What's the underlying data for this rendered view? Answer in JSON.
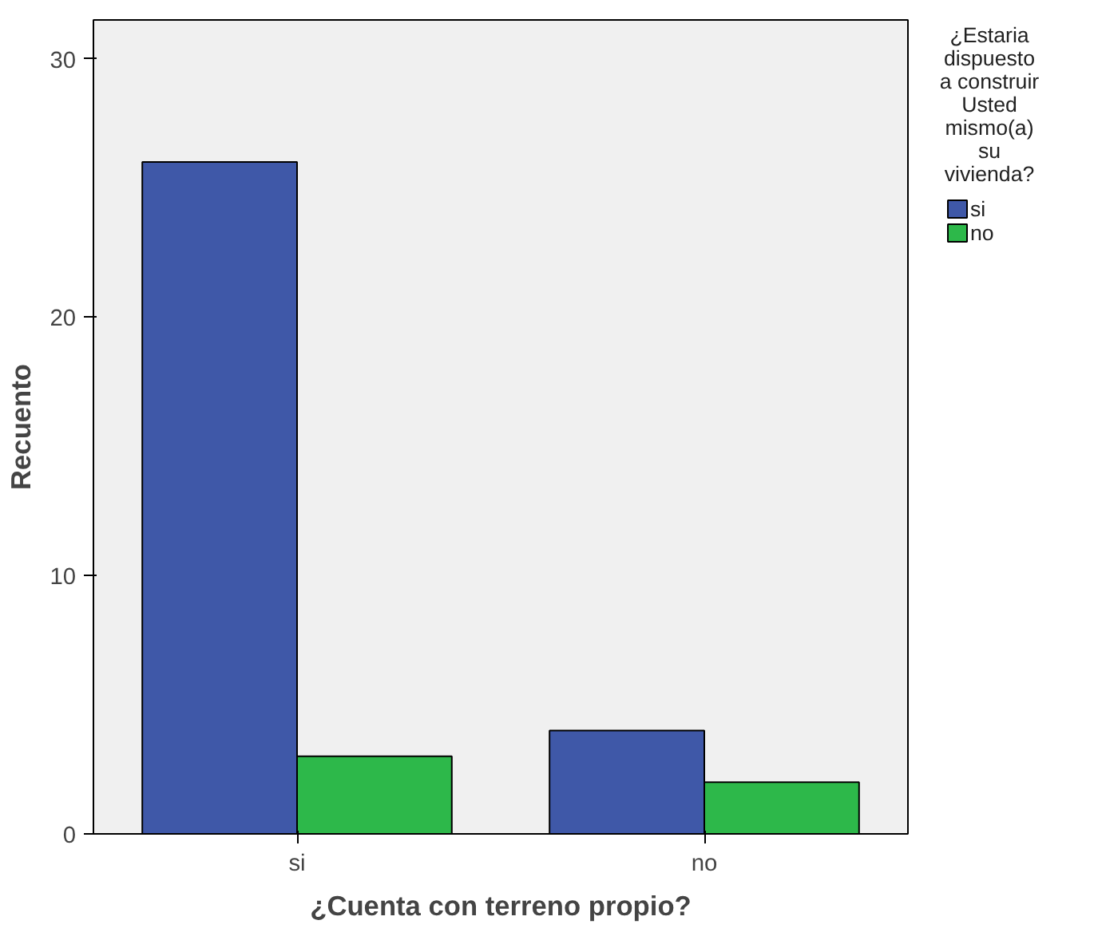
{
  "chart_data": {
    "type": "bar",
    "xlabel": "¿Cuenta con terreno propio?",
    "ylabel": "Recuento",
    "legend_title": "¿Estaria\ndispuesto\na construir\nUsted\nmismo(a)\nsu\nvivienda?",
    "categories": [
      "si",
      "no"
    ],
    "series": [
      {
        "name": "si",
        "color": "#3f58a8",
        "values": [
          26,
          4
        ]
      },
      {
        "name": "no",
        "color": "#2db84a",
        "values": [
          3,
          2
        ]
      }
    ],
    "ylim": [
      0,
      31.5
    ],
    "yticks": [
      0,
      10,
      20,
      30
    ],
    "grid": false,
    "legend": "right"
  }
}
